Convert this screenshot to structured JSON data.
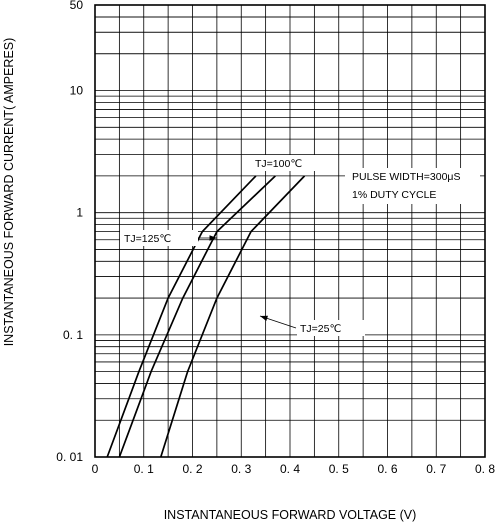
{
  "chart_data": {
    "type": "line",
    "xlabel": "INSTANTANEOUS FORWARD VOLTAGE (V)",
    "ylabel": "INSTANTANEOUS FORWARD CURRENT( AMPERES)",
    "x_scale": "linear",
    "y_scale": "log",
    "xlim": [
      0,
      0.8
    ],
    "ylim": [
      0.01,
      50
    ],
    "x_ticks": [
      0,
      0.1,
      0.2,
      0.3,
      0.4,
      0.5,
      0.6,
      0.7,
      0.8
    ],
    "x_tick_labels": [
      "0",
      "0. 1",
      "0. 2",
      "0. 3",
      "0. 4",
      "0. 5",
      "0. 6",
      "0. 7",
      "0. 8"
    ],
    "y_ticks": [
      0.01,
      0.1,
      1,
      10,
      50
    ],
    "y_tick_labels": [
      "0. 01",
      "0. 1",
      "1",
      "10",
      "50"
    ],
    "grid": true,
    "series": [
      {
        "name": "TJ=125℃",
        "x": [
          0.025,
          0.09,
          0.15,
          0.22,
          0.33
        ],
        "y": [
          0.01,
          0.05,
          0.2,
          0.7,
          2.0
        ]
      },
      {
        "name": "TJ=100℃",
        "x": [
          0.05,
          0.115,
          0.18,
          0.25,
          0.37
        ],
        "y": [
          0.01,
          0.05,
          0.2,
          0.7,
          2.0
        ]
      },
      {
        "name": "TJ=25℃",
        "x": [
          0.135,
          0.19,
          0.25,
          0.32,
          0.43
        ],
        "y": [
          0.01,
          0.05,
          0.2,
          0.7,
          2.0
        ]
      }
    ],
    "annotations": [
      {
        "text": "TJ=100℃",
        "sub": "J",
        "target": "TJ=100℃"
      },
      {
        "text": "TJ=125℃",
        "sub": "J",
        "target": "TJ=125℃",
        "arrow": true
      },
      {
        "text": "TJ=25℃",
        "sub": "J",
        "target": "TJ=25℃",
        "arrow": true
      },
      {
        "text": "PULSE WIDTH=300μS"
      },
      {
        "text": "1% DUTY CYCLE"
      }
    ]
  }
}
